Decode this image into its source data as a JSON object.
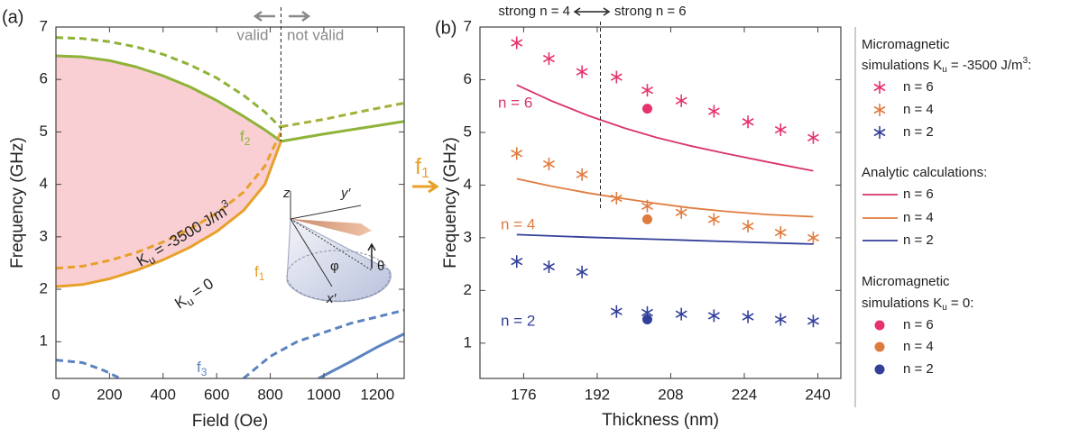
{
  "chart_data": [
    {
      "type": "line",
      "panel_label": "(a)",
      "xlabel": "Field (Oe)",
      "ylabel": "Frequency (GHz)",
      "xlim": [
        0,
        1300
      ],
      "ylim": [
        0.3,
        7
      ],
      "xticks": [
        0,
        200,
        400,
        600,
        800,
        1000,
        1200
      ],
      "yticks": [
        1,
        2,
        3,
        4,
        5,
        6,
        7
      ],
      "fill": {
        "between": [
          0,
          2
        ],
        "color": "#f9cfd3"
      },
      "divider": {
        "x": 840,
        "ymin": 4.82
      },
      "series": [
        {
          "color": "#8fb339",
          "dash": false,
          "x": [
            0,
            100,
            200,
            300,
            400,
            500,
            600,
            700,
            780,
            840,
            1000,
            1150,
            1300
          ],
          "values": [
            6.45,
            6.43,
            6.36,
            6.24,
            6.07,
            5.86,
            5.6,
            5.3,
            5.04,
            4.82,
            4.96,
            5.08,
            5.2
          ]
        },
        {
          "color": "#8fb339",
          "dash": true,
          "x": [
            0,
            100,
            200,
            300,
            400,
            500,
            600,
            700,
            780,
            840
          ],
          "values": [
            6.8,
            6.78,
            6.72,
            6.62,
            6.48,
            6.28,
            6.03,
            5.7,
            5.38,
            5.08
          ]
        },
        {
          "color": "#e8a02a",
          "dash": false,
          "x": [
            0,
            100,
            200,
            300,
            400,
            500,
            600,
            700,
            780,
            840
          ],
          "values": [
            2.05,
            2.09,
            2.2,
            2.36,
            2.56,
            2.8,
            3.1,
            3.5,
            4.0,
            4.82
          ]
        },
        {
          "color": "#e8a02a",
          "dash": true,
          "x": [
            0,
            100,
            200,
            300,
            400,
            500,
            600,
            700,
            780,
            840
          ],
          "values": [
            2.4,
            2.44,
            2.55,
            2.7,
            2.9,
            3.15,
            3.45,
            3.85,
            4.35,
            5.0
          ]
        },
        {
          "color": "#a4b13a",
          "dash": true,
          "x": [
            840,
            1000,
            1150,
            1300
          ],
          "values": [
            5.1,
            5.24,
            5.4,
            5.55
          ]
        },
        {
          "color": "#5b84bf",
          "dash": true,
          "x": [
            0,
            100,
            180,
            240,
            null,
            700,
            800,
            900,
            1100,
            1300
          ],
          "values": [
            0.65,
            0.6,
            0.45,
            0.3,
            null,
            0.3,
            0.72,
            1.0,
            1.35,
            1.6
          ]
        },
        {
          "color": "#5b84bf",
          "dash": false,
          "x": [
            980,
            1100,
            1200,
            1300
          ],
          "values": [
            0.3,
            0.62,
            0.9,
            1.15
          ]
        }
      ],
      "annotations": {
        "valid": "valid",
        "not_valid": "not valid",
        "f2": [
          "f",
          "2"
        ],
        "f1": [
          "f",
          "1"
        ],
        "f3": [
          "f",
          "3"
        ],
        "ku_neg": [
          "K",
          "u",
          " = -3500 J/m",
          "3"
        ],
        "ku_zero": [
          "K",
          "u",
          " = 0"
        ],
        "z": "z",
        "y_prime": "y′",
        "x_prime": "x′",
        "phi": "φ",
        "theta": "θ",
        "between": [
          "f",
          "1"
        ]
      }
    },
    {
      "type": "line",
      "panel_label": "(b)",
      "xlabel": "Thickness (nm)",
      "ylabel": "Frequency (GHz)",
      "xlim": [
        166.5,
        245
      ],
      "ylim": [
        0.33,
        7
      ],
      "xticks": [
        176,
        192,
        208,
        224,
        240
      ],
      "yticks": [
        1,
        2,
        3,
        4,
        5,
        6,
        7
      ],
      "divider": {
        "x": 192.7,
        "ymin": 3.55
      },
      "top_left": "strong n = 4",
      "top_right": "strong n = 6",
      "labels": {
        "n6": "n = 6",
        "n4": "n = 4",
        "n2": "n = 2"
      },
      "legend_titles": [
        [
          "Micromagnetic",
          "simulations K",
          "u",
          " = -3500 J/m",
          "3",
          ":"
        ],
        [
          "Analytic calculations:"
        ],
        [
          "Micromagnetic",
          "simulations K",
          "u",
          " = 0:"
        ]
      ],
      "series": [
        {
          "name": "n = 6",
          "color": "#e6336b",
          "marker": "star",
          "legend_group": 0,
          "x": [
            174.5,
            181.5,
            188.7,
            196.2,
            202.9,
            210.3,
            217.4,
            224.8,
            231.9,
            239
          ],
          "values": [
            6.7,
            6.4,
            6.15,
            6.05,
            5.8,
            5.6,
            5.4,
            5.2,
            5.05,
            4.9
          ]
        },
        {
          "name": "n = 4",
          "color": "#e07b3e",
          "marker": "star",
          "legend_group": 0,
          "x": [
            174.5,
            181.5,
            188.7,
            196.2,
            202.9,
            210.3,
            217.4,
            224.8,
            231.9,
            239
          ],
          "values": [
            4.6,
            4.4,
            4.2,
            3.75,
            3.6,
            3.48,
            3.35,
            3.22,
            3.1,
            3.0
          ]
        },
        {
          "name": "n = 2",
          "color": "#33409a",
          "marker": "star",
          "legend_group": 0,
          "x": [
            174.5,
            181.5,
            188.7,
            196.2,
            202.9,
            210.3,
            217.4,
            224.8,
            231.9,
            239
          ],
          "values": [
            2.55,
            2.45,
            2.35,
            1.6,
            1.58,
            1.55,
            1.52,
            1.5,
            1.45,
            1.42
          ]
        },
        {
          "name": "n = 6",
          "color": "#d9336e",
          "marker": "line",
          "legend_group": 1,
          "x": [
            174.5,
            182,
            190,
            198,
            205,
            212,
            220,
            229,
            239
          ],
          "values": [
            5.9,
            5.6,
            5.32,
            5.08,
            4.9,
            4.75,
            4.6,
            4.44,
            4.27
          ]
        },
        {
          "name": "n = 4",
          "color": "#e07b3e",
          "marker": "line",
          "legend_group": 1,
          "x": [
            174.5,
            182,
            190,
            198,
            205,
            212,
            220,
            229,
            239
          ],
          "values": [
            4.12,
            3.98,
            3.85,
            3.74,
            3.65,
            3.57,
            3.5,
            3.44,
            3.4
          ]
        },
        {
          "name": "n = 2",
          "color": "#33409a",
          "marker": "line",
          "legend_group": 1,
          "x": [
            174.5,
            190,
            205,
            220,
            239
          ],
          "values": [
            3.06,
            3.01,
            2.97,
            2.93,
            2.88
          ]
        },
        {
          "name": "n = 6",
          "color": "#e6336b",
          "marker": "dot",
          "legend_group": 2,
          "x": [
            202.9
          ],
          "values": [
            5.45
          ]
        },
        {
          "name": "n = 4",
          "color": "#e07b3e",
          "marker": "dot",
          "legend_group": 2,
          "x": [
            202.9
          ],
          "values": [
            3.35
          ]
        },
        {
          "name": "n = 2",
          "color": "#33409a",
          "marker": "dot",
          "legend_group": 2,
          "x": [
            202.9
          ],
          "values": [
            1.45
          ]
        }
      ]
    }
  ]
}
